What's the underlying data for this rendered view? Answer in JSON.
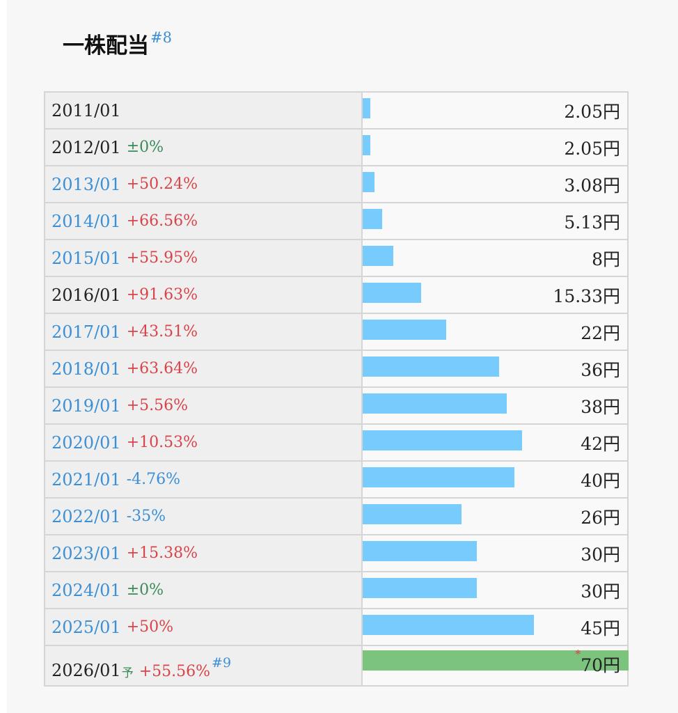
{
  "header": {
    "title": "一株配当",
    "footnote": "#8"
  },
  "chart_data": {
    "type": "bar",
    "unit": "円",
    "categories": [
      "2011/01",
      "2012/01",
      "2013/01",
      "2014/01",
      "2015/01",
      "2016/01",
      "2017/01",
      "2018/01",
      "2019/01",
      "2020/01",
      "2021/01",
      "2022/01",
      "2023/01",
      "2024/01",
      "2025/01",
      "2026/01"
    ],
    "values": [
      2.05,
      2.05,
      3.08,
      5.13,
      8,
      15.33,
      22,
      36,
      38,
      42,
      40,
      26,
      30,
      30,
      45,
      70
    ],
    "bar_max": 70
  },
  "rows": [
    {
      "date": "2011/01",
      "change": "",
      "change_type": "none",
      "linked": false,
      "amount": "2.05円",
      "value": 2.05
    },
    {
      "date": "2012/01",
      "change": "±0%",
      "change_type": "zero",
      "linked": false,
      "amount": "2.05円",
      "value": 2.05
    },
    {
      "date": "2013/01",
      "change": "+50.24%",
      "change_type": "pos",
      "linked": true,
      "amount": "3.08円",
      "value": 3.08
    },
    {
      "date": "2014/01",
      "change": "+66.56%",
      "change_type": "pos",
      "linked": true,
      "amount": "5.13円",
      "value": 5.13
    },
    {
      "date": "2015/01",
      "change": "+55.95%",
      "change_type": "pos",
      "linked": true,
      "amount": "8円",
      "value": 8
    },
    {
      "date": "2016/01",
      "change": "+91.63%",
      "change_type": "pos",
      "linked": false,
      "amount": "15.33円",
      "value": 15.33
    },
    {
      "date": "2017/01",
      "change": "+43.51%",
      "change_type": "pos",
      "linked": true,
      "amount": "22円",
      "value": 22
    },
    {
      "date": "2018/01",
      "change": "+63.64%",
      "change_type": "pos",
      "linked": true,
      "amount": "36円",
      "value": 36
    },
    {
      "date": "2019/01",
      "change": "+5.56%",
      "change_type": "pos",
      "linked": true,
      "amount": "38円",
      "value": 38
    },
    {
      "date": "2020/01",
      "change": "+10.53%",
      "change_type": "pos",
      "linked": true,
      "amount": "42円",
      "value": 42
    },
    {
      "date": "2021/01",
      "change": "-4.76%",
      "change_type": "neg",
      "linked": true,
      "amount": "40円",
      "value": 40
    },
    {
      "date": "2022/01",
      "change": "-35%",
      "change_type": "neg",
      "linked": true,
      "amount": "26円",
      "value": 26
    },
    {
      "date": "2023/01",
      "change": "+15.38%",
      "change_type": "pos",
      "linked": true,
      "amount": "30円",
      "value": 30
    },
    {
      "date": "2024/01",
      "change": "±0%",
      "change_type": "zero",
      "linked": true,
      "amount": "30円",
      "value": 30
    },
    {
      "date": "2025/01",
      "change": "+50%",
      "change_type": "pos",
      "linked": true,
      "amount": "45円",
      "value": 45
    }
  ],
  "forecast_row": {
    "date": "2026/01",
    "forecast_mark": "予",
    "change": "+55.56%",
    "footnote": "#9",
    "asterisk": "*",
    "amount": "70円",
    "value": 70
  },
  "colors": {
    "bar": "#78cbfd",
    "forecast_bar": "#7cc47e",
    "link": "#3a8fd6",
    "positive": "#d9434a",
    "zero": "#3a8a5a"
  }
}
